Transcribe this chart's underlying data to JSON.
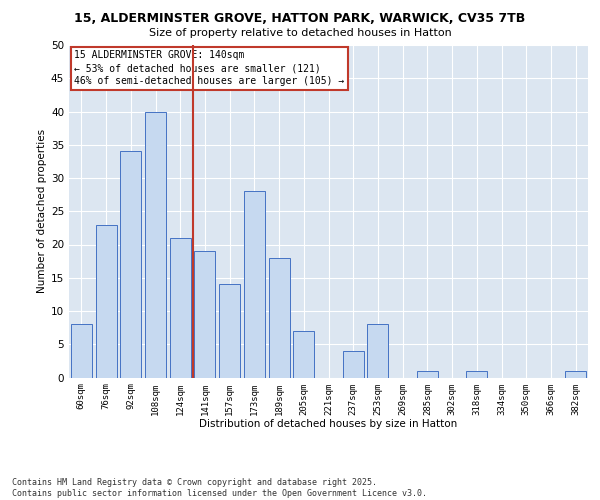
{
  "title_line1": "15, ALDERMINSTER GROVE, HATTON PARK, WARWICK, CV35 7TB",
  "title_line2": "Size of property relative to detached houses in Hatton",
  "xlabel": "Distribution of detached houses by size in Hatton",
  "ylabel": "Number of detached properties",
  "categories": [
    "60sqm",
    "76sqm",
    "92sqm",
    "108sqm",
    "124sqm",
    "141sqm",
    "157sqm",
    "173sqm",
    "189sqm",
    "205sqm",
    "221sqm",
    "237sqm",
    "253sqm",
    "269sqm",
    "285sqm",
    "302sqm",
    "318sqm",
    "334sqm",
    "350sqm",
    "366sqm",
    "382sqm"
  ],
  "values": [
    8,
    23,
    34,
    40,
    21,
    19,
    14,
    28,
    18,
    7,
    0,
    4,
    8,
    0,
    1,
    0,
    1,
    0,
    0,
    0,
    1
  ],
  "bar_color": "#c6d9f0",
  "bar_edge_color": "#4472c4",
  "background_color": "#dce6f1",
  "grid_color": "#ffffff",
  "vline_x_index": 5,
  "vline_color": "#c0392b",
  "annotation_text": "15 ALDERMINSTER GROVE: 140sqm\n← 53% of detached houses are smaller (121)\n46% of semi-detached houses are larger (105) →",
  "annotation_box_color": "#c0392b",
  "ylim": [
    0,
    50
  ],
  "yticks": [
    0,
    5,
    10,
    15,
    20,
    25,
    30,
    35,
    40,
    45,
    50
  ],
  "footer_line1": "Contains HM Land Registry data © Crown copyright and database right 2025.",
  "footer_line2": "Contains public sector information licensed under the Open Government Licence v3.0."
}
